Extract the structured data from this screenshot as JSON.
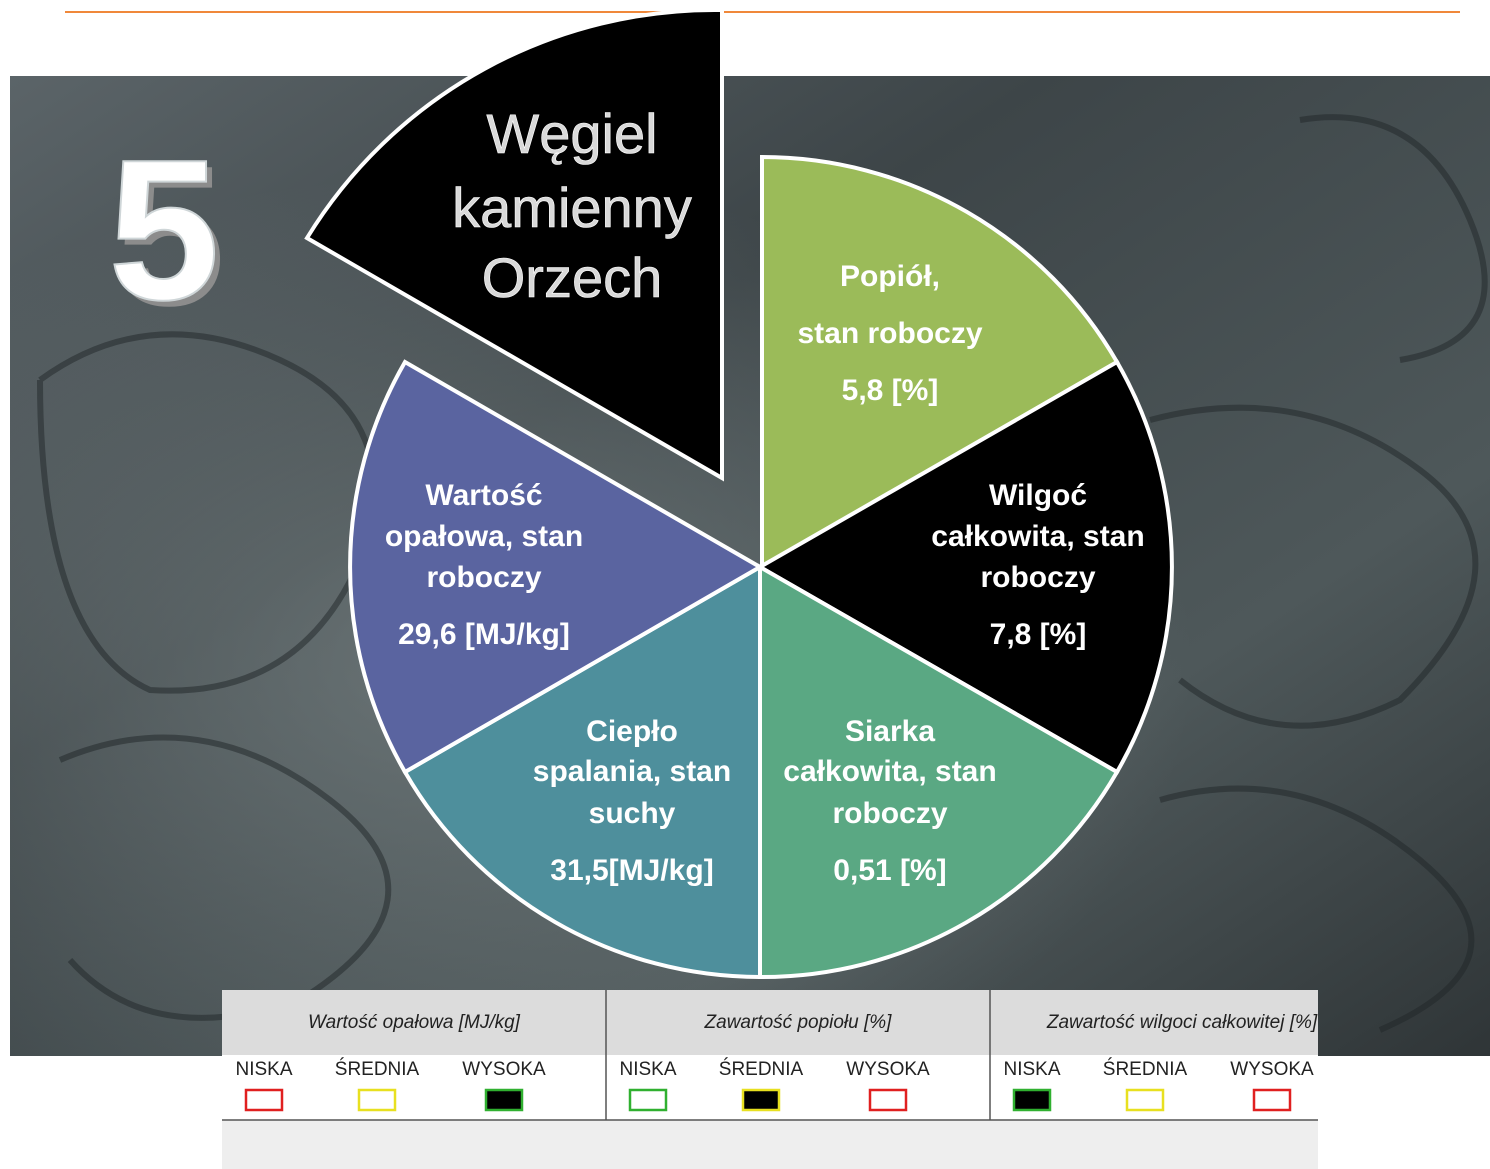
{
  "page_number": "5",
  "title": {
    "lines": [
      "Węgiel",
      "kamienny",
      "Orzech"
    ]
  },
  "segments": [
    {
      "label_lines": [
        "Popiół,",
        "stan roboczy"
      ],
      "value": "5,8 [%]"
    },
    {
      "label_lines": [
        "Wilgoć",
        "całkowita, stan",
        "roboczy"
      ],
      "value": "7,8 [%]"
    },
    {
      "label_lines": [
        "Siarka",
        "całkowita, stan",
        "roboczy"
      ],
      "value": "0,51 [%]"
    },
    {
      "label_lines": [
        "Ciepło",
        "spalania, stan",
        "suchy"
      ],
      "value": "31,5[MJ/kg]"
    },
    {
      "label_lines": [
        "Wartość",
        "opałowa, stan",
        "roboczy"
      ],
      "value": "29,6 [MJ/kg]"
    }
  ],
  "table": {
    "columns": [
      {
        "header": "Wartość opałowa [MJ/kg]",
        "levels": [
          "NISKA",
          "ŚREDNIA",
          "WYSOKA"
        ]
      },
      {
        "header": "Zawartość popiołu [%]",
        "levels": [
          "NISKA",
          "ŚREDNIA",
          "WYSOKA"
        ]
      },
      {
        "header": "Zawartość wilgoci całkowitej [%]",
        "levels": [
          "NISKA",
          "ŚREDNIA",
          "WYSOKA"
        ]
      }
    ]
  }
}
